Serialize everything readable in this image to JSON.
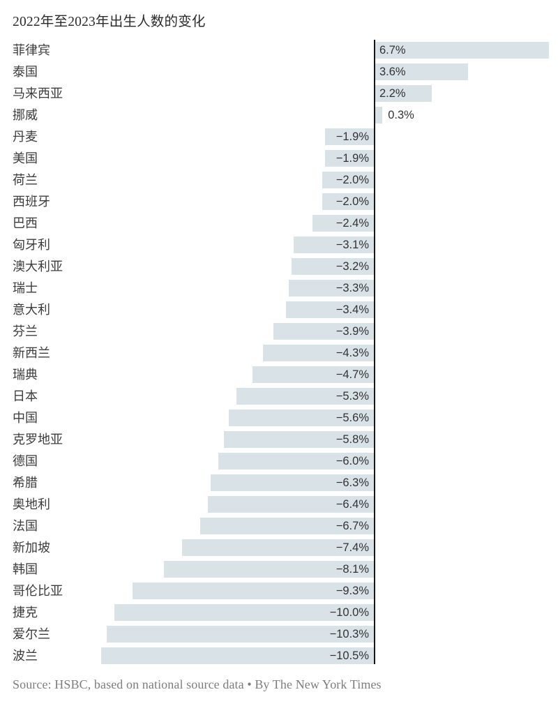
{
  "title": "2022年至2023年出生人数的变化",
  "source_note": "Source:  HSBC, based on national source data • By The New York Times",
  "colors": {
    "background": "#ffffff",
    "bar_fill": "#d8e2e7",
    "axis_line": "#161616",
    "value_text": "#333333",
    "country_text": "#3c3c3c",
    "title_text": "#2b2b2b",
    "source_text": "#7d7d7d"
  },
  "chart_data": {
    "type": "bar",
    "orientation": "horizontal",
    "title": "2022年至2023年出生人数的变化",
    "xlabel": "",
    "ylabel": "",
    "unit": "%",
    "xlim": [
      -10.5,
      6.7
    ],
    "grid": false,
    "legend": "none",
    "value_labels_shown": true,
    "negative_sign_glyph": "−",
    "categories": [
      "菲律宾",
      "泰国",
      "马来西亚",
      "挪威",
      "丹麦",
      "美国",
      "荷兰",
      "西班牙",
      "巴西",
      "匈牙利",
      "澳大利亚",
      "瑞士",
      "意大利",
      "芬兰",
      "新西兰",
      "瑞典",
      "日本",
      "中国",
      "克罗地亚",
      "德国",
      "希腊",
      "奥地利",
      "法国",
      "新加坡",
      "韩国",
      "哥伦比亚",
      "捷克",
      "爱尔兰",
      "波兰"
    ],
    "values": [
      6.7,
      3.6,
      2.2,
      0.3,
      -1.9,
      -1.9,
      -2.0,
      -2.0,
      -2.4,
      -3.1,
      -3.2,
      -3.3,
      -3.4,
      -3.9,
      -4.3,
      -4.7,
      -5.3,
      -5.6,
      -5.8,
      -6.0,
      -6.3,
      -6.4,
      -6.7,
      -7.4,
      -8.1,
      -9.3,
      -10.0,
      -10.3,
      -10.5
    ],
    "source": "Source:  HSBC, based on national source data • By The New York Times"
  }
}
